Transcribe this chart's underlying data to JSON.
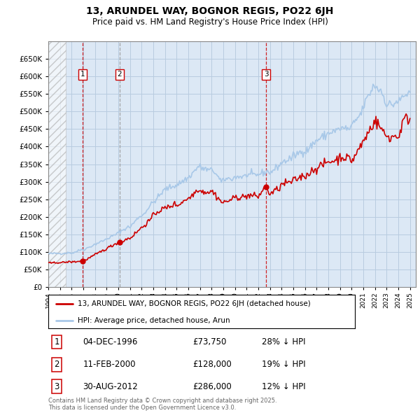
{
  "title": "13, ARUNDEL WAY, BOGNOR REGIS, PO22 6JH",
  "subtitle": "Price paid vs. HM Land Registry's House Price Index (HPI)",
  "ylim": [
    0,
    700000
  ],
  "yticks": [
    0,
    50000,
    100000,
    150000,
    200000,
    250000,
    300000,
    350000,
    400000,
    450000,
    500000,
    550000,
    600000,
    650000
  ],
  "xlim_start": 1994.0,
  "xlim_end": 2025.5,
  "hpi_color": "#a8c8e8",
  "price_color": "#cc0000",
  "marker_color": "#cc0000",
  "vline_color_red": "#cc0000",
  "vline_color_grey": "#999999",
  "background_color": "#dce8f5",
  "grid_color": "#b8cce0",
  "sale_dates": [
    1996.92,
    2000.11,
    2012.66
  ],
  "sale_prices": [
    73750,
    128000,
    286000
  ],
  "sale_labels": [
    "1",
    "2",
    "3"
  ],
  "sale_date_strings": [
    "04-DEC-1996",
    "11-FEB-2000",
    "30-AUG-2012"
  ],
  "sale_price_strings": [
    "£73,750",
    "£128,000",
    "£286,000"
  ],
  "sale_hpi_strings": [
    "28% ↓ HPI",
    "19% ↓ HPI",
    "12% ↓ HPI"
  ],
  "legend_price_label": "13, ARUNDEL WAY, BOGNOR REGIS, PO22 6JH (detached house)",
  "legend_hpi_label": "HPI: Average price, detached house, Arun",
  "footnote": "Contains HM Land Registry data © Crown copyright and database right 2025.\nThis data is licensed under the Open Government Licence v3.0.",
  "hatch_region_end": 1995.5
}
